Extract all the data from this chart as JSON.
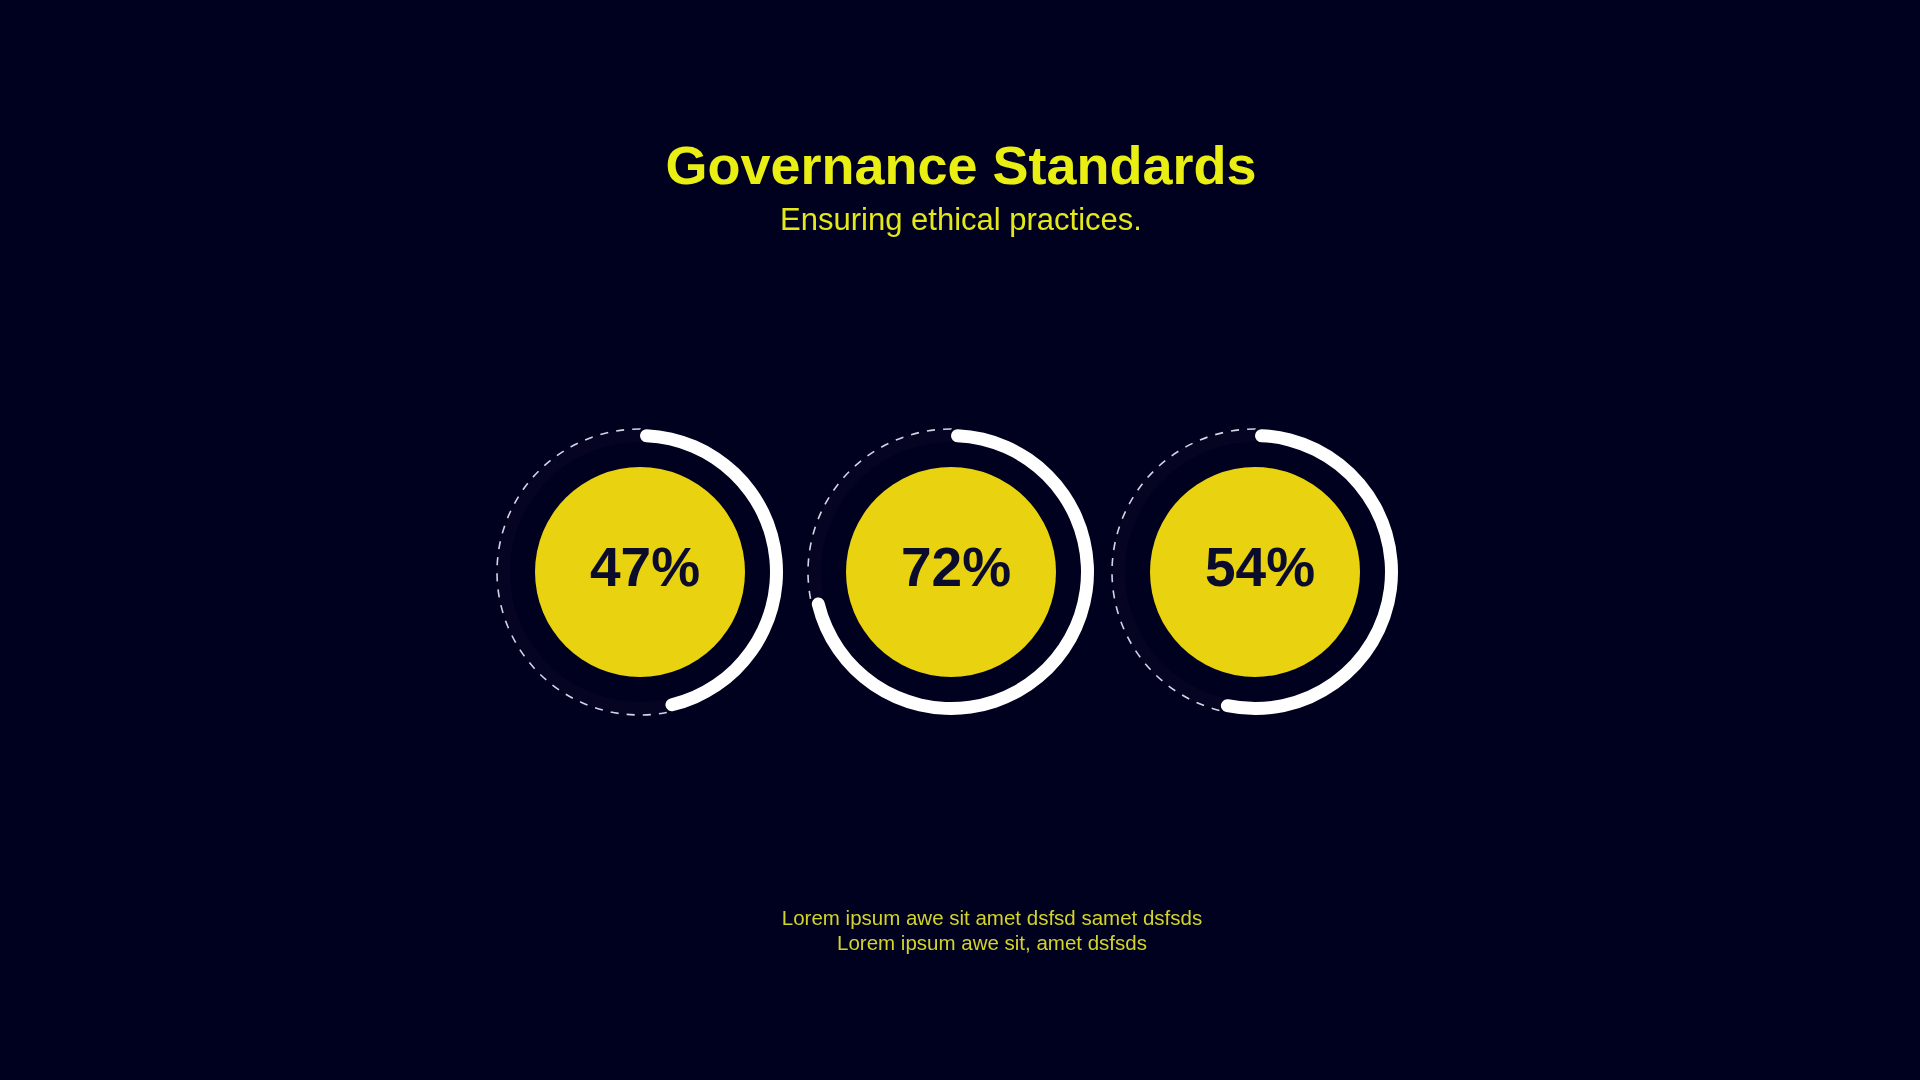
{
  "chart_data": [
    {
      "type": "donut",
      "categories": [
        null,
        null
      ],
      "values": [
        47,
        53
      ],
      "colors": [
        "#ffffff",
        "#d4d4e4"
      ],
      "value_labels": [
        "47%",
        null
      ],
      "line_style": "dashed"
    },
    {
      "type": "donut",
      "title": "Governance Standards",
      "subtitle": "Ensuring ethical practices.",
      "annotations": [
        "Lorem ipsum awe sit amet dsfsd samet dsfsds",
        "Lorem ipsum awe sit, amet dsfsds"
      ],
      "categories": [
        null,
        null
      ],
      "values": [
        72,
        28
      ],
      "colors": [
        "#ffffff",
        "#d4d4e4"
      ],
      "value_labels": [
        "72%",
        null
      ],
      "line_style": "dashed"
    },
    {
      "type": "donut",
      "categories": [
        null,
        null
      ],
      "values": [
        54,
        46
      ],
      "colors": [
        "#ffffff",
        "#d4d4e4"
      ],
      "value_labels": [
        "54%",
        null
      ],
      "line_style": "dashed"
    }
  ]
}
